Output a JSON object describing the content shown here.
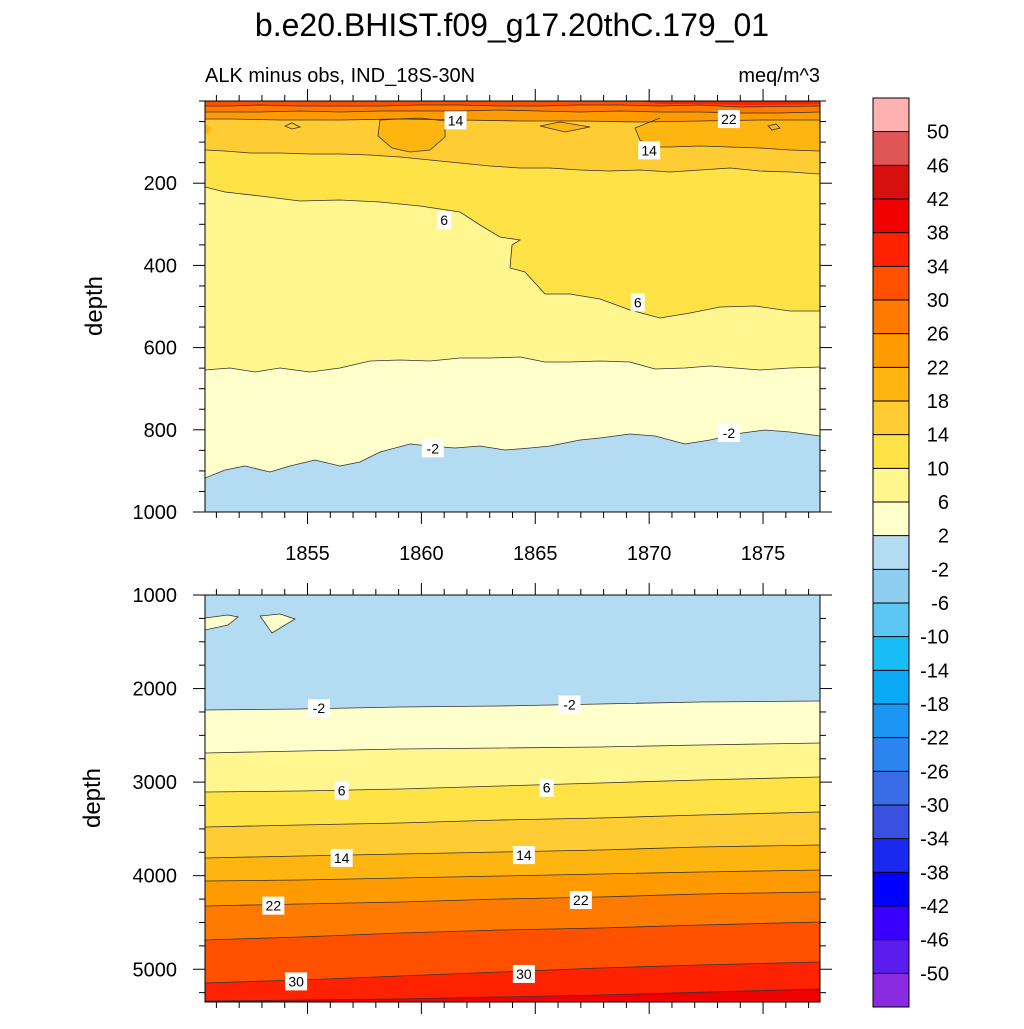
{
  "chart_data": {
    "type": "contour",
    "title": "b.e20.BHIST.f09_g17.20thC.179_01",
    "subtitle_left": "ALK minus obs, IND_18S-30N",
    "subtitle_right": "meq/m^3",
    "colorbar": {
      "levels": [
        -50,
        -46,
        -42,
        -38,
        -34,
        -30,
        -26,
        -22,
        -18,
        -14,
        -10,
        -6,
        -2,
        2,
        6,
        10,
        14,
        18,
        22,
        26,
        30,
        34,
        38,
        42,
        46,
        50
      ],
      "labels": [
        "-50",
        "-46",
        "-42",
        "-38",
        "-34",
        "-30",
        "-26",
        "-22",
        "-18",
        "-14",
        "-10",
        "-6",
        "-2",
        "2",
        "6",
        "10",
        "14",
        "18",
        "22",
        "26",
        "30",
        "34",
        "38",
        "42",
        "46",
        "50"
      ],
      "colors": [
        "#8A2BE2",
        "#5B1CF0",
        "#3A00FF",
        "#0000FF",
        "#1A29F0",
        "#3950E0",
        "#3A6CE8",
        "#2B84F0",
        "#1C96F5",
        "#0AAAF7",
        "#18BDF8",
        "#5BC6F2",
        "#8FCDEE",
        "#B3DCF2",
        "#FFFFCC",
        "#FFF68F",
        "#FFE245",
        "#FFCC33",
        "#FFB50F",
        "#FF9A00",
        "#FF7A00",
        "#FF5000",
        "#FF2200",
        "#F00000",
        "#D60F0F",
        "#E05555",
        "#FFB0B0"
      ]
    },
    "panels": [
      {
        "name": "upper",
        "xlabel": "",
        "ylabel": "depth",
        "xlim": [
          1850.5,
          1877.5
        ],
        "ylim": [
          1000,
          0
        ],
        "x_ticks": [
          1855,
          1860,
          1865,
          1870,
          1875
        ],
        "x_tick_labels": [
          "1855",
          "1860",
          "1865",
          "1870",
          "1875"
        ],
        "y_ticks": [
          200,
          400,
          600,
          800,
          1000
        ],
        "y_tick_labels": [
          "200",
          "400",
          "600",
          "800",
          "1000"
        ],
        "contour_labels": [
          {
            "text": "14",
            "x": 1861.5,
            "y": 47
          },
          {
            "text": "22",
            "x": 1873.5,
            "y": 44
          },
          {
            "text": "14",
            "x": 1870,
            "y": 120
          },
          {
            "text": "6",
            "x": 1861,
            "y": 290
          },
          {
            "text": "6",
            "x": 1869.5,
            "y": 490
          },
          {
            "text": "-2",
            "x": 1860.5,
            "y": 845
          },
          {
            "text": "-2",
            "x": 1873.5,
            "y": 808
          }
        ]
      },
      {
        "name": "lower",
        "xlabel": "",
        "ylabel": "depth",
        "xlim": [
          1850.5,
          1877.5
        ],
        "ylim": [
          5350,
          1000
        ],
        "x_ticks": [
          1855,
          1860,
          1865,
          1870,
          1875
        ],
        "y_ticks": [
          1000,
          2000,
          3000,
          4000,
          5000
        ],
        "y_tick_labels": [
          "1000",
          "2000",
          "3000",
          "4000",
          "5000"
        ],
        "contour_labels": [
          {
            "text": "-2",
            "x": 1855.5,
            "y": 2210
          },
          {
            "text": "-2",
            "x": 1866.5,
            "y": 2170
          },
          {
            "text": "6",
            "x": 1856.5,
            "y": 3090
          },
          {
            "text": "6",
            "x": 1865.5,
            "y": 3060
          },
          {
            "text": "14",
            "x": 1856.5,
            "y": 3810
          },
          {
            "text": "14",
            "x": 1864.5,
            "y": 3780
          },
          {
            "text": "22",
            "x": 1853.5,
            "y": 4320
          },
          {
            "text": "22",
            "x": 1867,
            "y": 4260
          },
          {
            "text": "30",
            "x": 1854.5,
            "y": 5130
          },
          {
            "text": "30",
            "x": 1864.5,
            "y": 5050
          }
        ]
      }
    ]
  }
}
